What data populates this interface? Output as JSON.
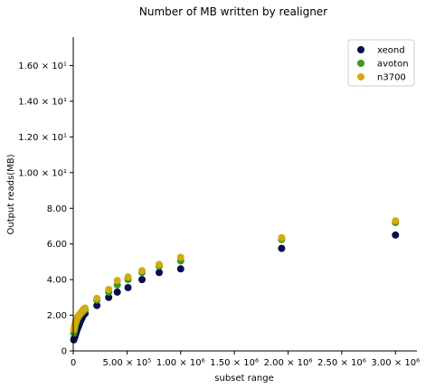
{
  "chart_data": {
    "type": "scatter",
    "title": "Number of MB written by realigner",
    "xlabel": "subset range",
    "ylabel": "Output reads(MB)",
    "xlim": [
      0,
      3200000
    ],
    "ylim": [
      0,
      17.6
    ],
    "grid": false,
    "legend_placement": "top-right",
    "x_ticks": [
      {
        "value": 0,
        "label": "0"
      },
      {
        "value": 500000,
        "label": "5.00 × 10⁵"
      },
      {
        "value": 1000000,
        "label": "1.00 × 10⁶"
      },
      {
        "value": 1500000,
        "label": "1.50 × 10⁶"
      },
      {
        "value": 2000000,
        "label": "2.00 × 10⁶"
      },
      {
        "value": 2500000,
        "label": "2.50 × 10⁶"
      },
      {
        "value": 3000000,
        "label": "3.00 × 10⁶"
      }
    ],
    "y_ticks": [
      {
        "value": 0,
        "label": "0"
      },
      {
        "value": 2,
        "label": "2.00"
      },
      {
        "value": 4,
        "label": "4.00"
      },
      {
        "value": 6,
        "label": "6.00"
      },
      {
        "value": 8,
        "label": "8.00"
      },
      {
        "value": 10,
        "label": "1.00 × 10¹"
      },
      {
        "value": 12,
        "label": "1.20 × 10¹"
      },
      {
        "value": 14,
        "label": "1.40 × 10¹"
      },
      {
        "value": 16,
        "label": "1.60 × 10¹"
      }
    ],
    "series": [
      {
        "name": "xeond",
        "color": "#0b0b4f",
        "x": [
          5000,
          10000,
          15000,
          20000,
          25000,
          30000,
          40000,
          50000,
          60000,
          70000,
          80000,
          90000,
          100000,
          110000,
          220000,
          330000,
          410000,
          510000,
          640000,
          800000,
          1000000,
          1940000,
          3000000
        ],
        "y": [
          0.62,
          0.72,
          0.8,
          0.9,
          1.0,
          1.1,
          1.25,
          1.4,
          1.55,
          1.7,
          1.82,
          1.95,
          2.05,
          2.1,
          2.55,
          3.0,
          3.3,
          3.55,
          4.0,
          4.4,
          4.6,
          5.75,
          6.5
        ]
      },
      {
        "name": "avoton",
        "color": "#3a9a1f",
        "x": [
          5000,
          10000,
          15000,
          20000,
          25000,
          30000,
          40000,
          50000,
          60000,
          70000,
          80000,
          90000,
          100000,
          110000,
          220000,
          330000,
          410000,
          510000,
          640000,
          800000,
          1000000,
          1940000,
          3000000
        ],
        "y": [
          1.0,
          1.15,
          1.3,
          1.45,
          1.55,
          1.65,
          1.8,
          1.9,
          2.0,
          2.1,
          2.15,
          2.2,
          2.25,
          2.3,
          2.85,
          3.3,
          3.7,
          4.0,
          4.4,
          4.75,
          5.05,
          6.25,
          7.2
        ]
      },
      {
        "name": "n3700",
        "color": "#d4aa10",
        "x": [
          5000,
          10000,
          15000,
          20000,
          25000,
          30000,
          40000,
          50000,
          60000,
          70000,
          80000,
          90000,
          100000,
          110000,
          220000,
          330000,
          410000,
          510000,
          640000,
          800000,
          1000000,
          1940000,
          3000000
        ],
        "y": [
          1.2,
          1.35,
          1.5,
          1.6,
          1.7,
          1.8,
          1.9,
          2.0,
          2.05,
          2.15,
          2.2,
          2.3,
          2.35,
          2.4,
          2.95,
          3.45,
          3.95,
          4.15,
          4.5,
          4.85,
          5.25,
          6.35,
          7.3
        ]
      }
    ]
  }
}
